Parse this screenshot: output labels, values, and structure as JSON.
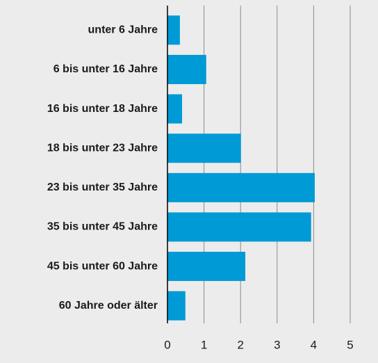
{
  "chart_data": {
    "type": "bar",
    "orientation": "horizontal",
    "categories": [
      "unter 6 Jahre",
      "6 bis unter 16 Jahre",
      "16 bis unter 18 Jahre",
      "18 bis unter 23 Jahre",
      "23 bis unter 35 Jahre",
      "35 bis unter 45 Jahre",
      "45 bis unter 60 Jahre",
      "60 Jahre oder älter"
    ],
    "values": [
      0.34,
      1.06,
      0.4,
      2.01,
      4.03,
      3.93,
      2.13,
      0.49
    ],
    "color": "#009ad6",
    "xlim": [
      0,
      5
    ],
    "xticks": [
      0,
      1,
      2,
      3,
      4,
      5
    ],
    "grid": true
  }
}
